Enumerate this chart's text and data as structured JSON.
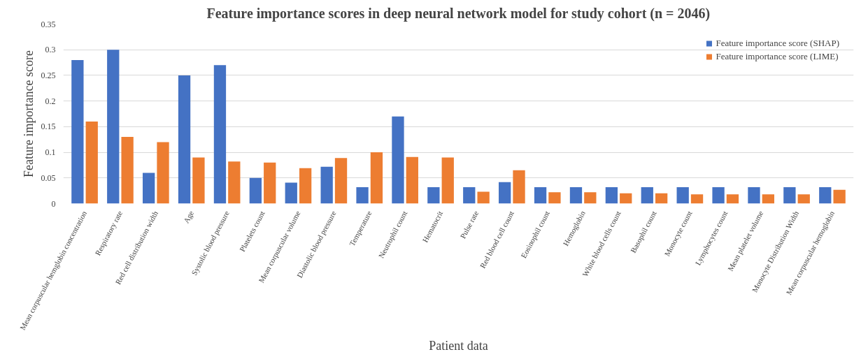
{
  "chart_data": {
    "type": "bar",
    "title": "Feature importance scores in deep neural network model for study cohort (n = 2046)",
    "xlabel": "Patient data",
    "ylabel": "Feature importance score",
    "categories": [
      "Mean corpuscular hemglobin concentration",
      "Respiratory rate",
      "Red cell distribution width",
      "Age",
      "Systolic blood pressure",
      "Platelets count",
      "Mean corpuscular volume",
      "Diastolic blood pressure",
      "Temperature",
      "Neutrophil count",
      "Hematocrit",
      "Pulse rate",
      "Red blood cell count",
      "Eosinophil count",
      "Hemoglobin",
      "White blood cells count",
      "Basophil count",
      "Monocyte count",
      "Lymphocytes count",
      "Mean platelet volume",
      "Monocyte Distribution Width",
      "Mean corpuscular hemoglobin"
    ],
    "series": [
      {
        "name": "Feature importance score (SHAP)",
        "color": "#4472c4",
        "values": [
          0.28,
          0.3,
          0.06,
          0.25,
          0.27,
          0.05,
          0.041,
          0.072,
          0.032,
          0.17,
          0.032,
          0.032,
          0.042,
          0.032,
          0.032,
          0.032,
          0.032,
          0.032,
          0.032,
          0.032,
          0.032,
          0.032
        ]
      },
      {
        "name": "Feature importance score (LIME)",
        "color": "#ed7d31",
        "values": [
          0.16,
          0.13,
          0.12,
          0.09,
          0.082,
          0.08,
          0.069,
          0.089,
          0.1,
          0.091,
          0.09,
          0.023,
          0.065,
          0.022,
          0.022,
          0.02,
          0.02,
          0.018,
          0.018,
          0.018,
          0.018,
          0.027
        ]
      }
    ],
    "ylim": [
      0,
      0.35
    ],
    "yticks": [
      0,
      0.05,
      0.1,
      0.15,
      0.2,
      0.25,
      0.3,
      0.35
    ],
    "grid": "y",
    "legend": "top right"
  }
}
